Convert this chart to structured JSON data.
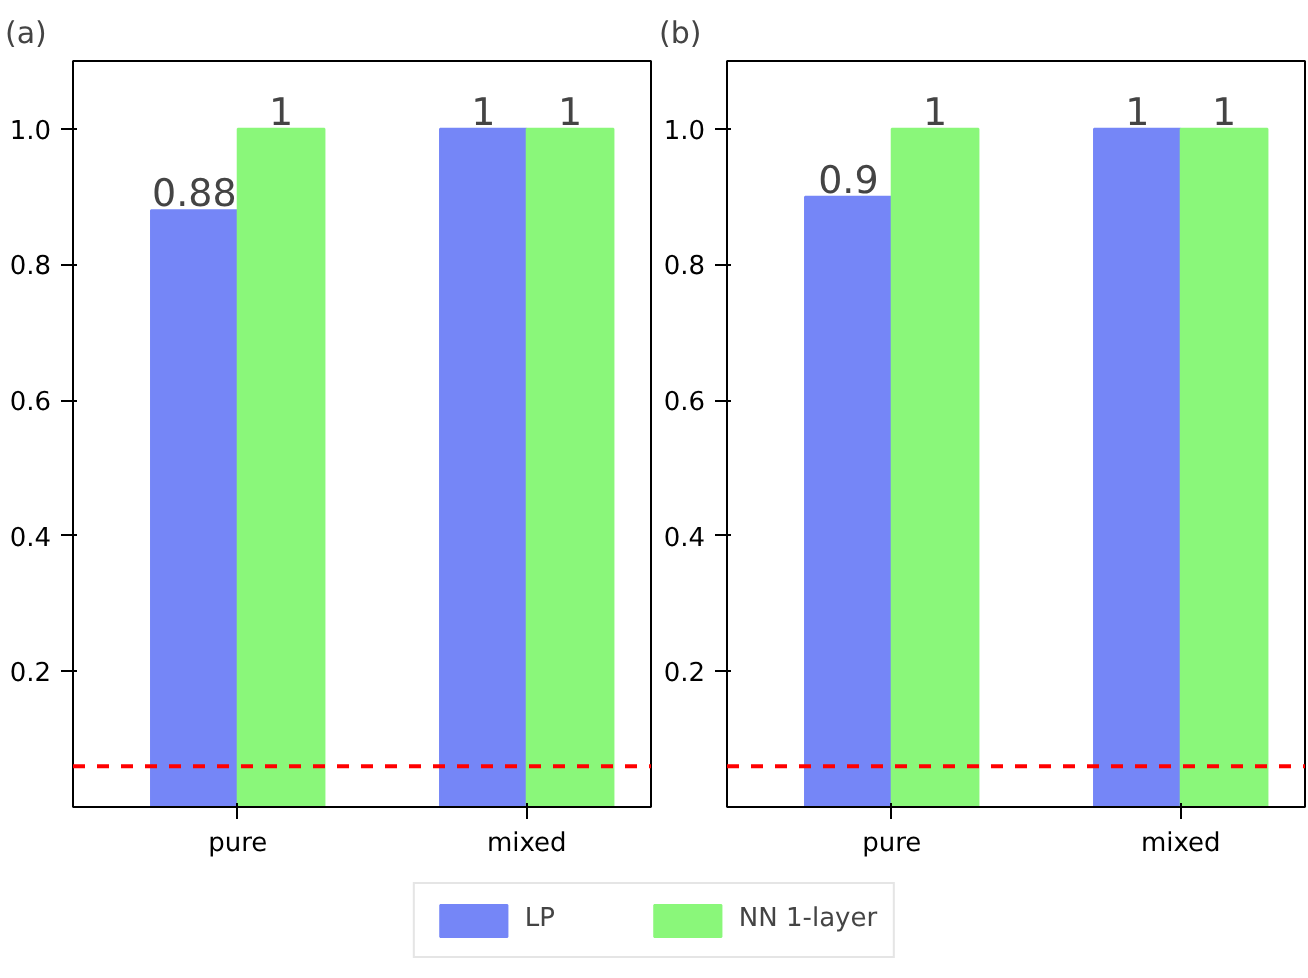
{
  "chart_data": [
    {
      "type": "bar",
      "title": "(a)",
      "categories": [
        "pure",
        "mixed"
      ],
      "series": [
        {
          "name": "LP",
          "color": "#7586f7",
          "values": [
            0.88,
            1
          ]
        },
        {
          "name": "NN 1-layer",
          "color": "#8af77a",
          "values": [
            1,
            1
          ]
        }
      ],
      "ylim": [
        0,
        1.1
      ],
      "yticks": [
        0.2,
        0.4,
        0.6,
        0.8,
        {
          "value": 1.0,
          "label": "1.0"
        }
      ],
      "data_labels": true,
      "grid": false,
      "legend": "bottom",
      "ref_lines": [
        {
          "axis": "y",
          "value": 0.06,
          "color": "#ff0000",
          "line_style": "dashed"
        }
      ]
    },
    {
      "type": "bar",
      "title": "(b)",
      "categories": [
        "pure",
        "mixed"
      ],
      "series": [
        {
          "color": "#7586f7",
          "values": [
            0.9,
            1
          ]
        },
        {
          "color": "#8af77a",
          "values": [
            1,
            1
          ]
        }
      ],
      "ylim": [
        0,
        1.1
      ],
      "yticks": [
        0.2,
        0.4,
        0.6,
        0.8,
        {
          "value": 1.0,
          "label": "1.0"
        }
      ],
      "data_labels": true,
      "grid": false,
      "ref_lines": [
        {
          "axis": "y",
          "value": 0.06,
          "color": "#ff0000",
          "line_style": "dashed"
        }
      ]
    }
  ]
}
